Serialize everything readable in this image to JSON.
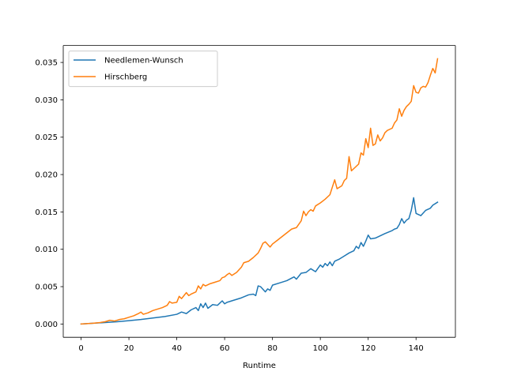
{
  "chart_data": {
    "type": "line",
    "title": "",
    "xlabel": "Runtime",
    "ylabel": "",
    "xlim": [
      -7.45,
      156.45
    ],
    "ylim": [
      -0.00178,
      0.03727
    ],
    "x_ticks": [
      0,
      20,
      40,
      60,
      80,
      100,
      120,
      140
    ],
    "x_tick_labels": [
      "0",
      "20",
      "40",
      "60",
      "80",
      "100",
      "120",
      "140"
    ],
    "y_ticks": [
      0.0,
      0.005,
      0.01,
      0.015,
      0.02,
      0.025,
      0.03,
      0.035
    ],
    "y_tick_labels": [
      "0.000",
      "0.005",
      "0.010",
      "0.015",
      "0.020",
      "0.025",
      "0.030",
      "0.035"
    ],
    "grid": false,
    "legend_position": "top-left",
    "series": [
      {
        "name": "Needlemen-Wunsch",
        "color": "#1f77b4",
        "x": [
          0,
          5,
          10,
          15,
          20,
          25,
          30,
          35,
          40,
          42,
          44,
          46,
          48,
          49,
          50,
          51,
          52,
          53,
          55,
          57,
          59,
          60,
          61,
          63,
          65,
          67,
          70,
          72,
          73,
          74,
          75,
          77,
          78,
          79,
          80,
          83,
          86,
          89,
          90,
          92,
          94,
          96,
          98,
          100,
          101,
          102,
          103,
          104,
          105,
          106,
          108,
          110,
          112,
          114,
          115,
          116,
          117,
          118,
          119,
          120,
          121,
          123,
          125,
          127,
          130,
          131,
          132,
          133,
          134,
          135,
          136,
          137,
          138,
          139,
          140,
          142,
          144,
          146,
          147,
          149
        ],
        "values": [
          0.0,
          0.0001,
          0.0002,
          0.0003,
          0.00045,
          0.0006,
          0.0008,
          0.001,
          0.0013,
          0.0016,
          0.0014,
          0.0019,
          0.0022,
          0.0018,
          0.0027,
          0.0022,
          0.0028,
          0.0021,
          0.0026,
          0.0025,
          0.0031,
          0.0027,
          0.0029,
          0.0031,
          0.0033,
          0.0035,
          0.0039,
          0.004,
          0.0038,
          0.0051,
          0.005,
          0.0043,
          0.0047,
          0.0045,
          0.0052,
          0.0055,
          0.0058,
          0.0063,
          0.006,
          0.0068,
          0.0069,
          0.0074,
          0.007,
          0.0079,
          0.0076,
          0.0081,
          0.0078,
          0.0083,
          0.0078,
          0.0084,
          0.0087,
          0.0091,
          0.0095,
          0.0098,
          0.0104,
          0.0101,
          0.0109,
          0.0104,
          0.0111,
          0.0119,
          0.0114,
          0.0115,
          0.0118,
          0.0121,
          0.0125,
          0.0127,
          0.0128,
          0.0133,
          0.0141,
          0.0135,
          0.0139,
          0.0141,
          0.0152,
          0.0169,
          0.0148,
          0.0145,
          0.0152,
          0.0155,
          0.0159,
          0.0163
        ]
      },
      {
        "name": "Hirschberg",
        "color": "#ff7f0e",
        "x": [
          0,
          5,
          8,
          10,
          12,
          14,
          16,
          18,
          20,
          22,
          24,
          25,
          26,
          28,
          30,
          32,
          34,
          36,
          37,
          38,
          40,
          41,
          42,
          43,
          44,
          45,
          46,
          48,
          49,
          50,
          51,
          52,
          54,
          56,
          58,
          59,
          60,
          61,
          62,
          63,
          65,
          67,
          68,
          70,
          72,
          74,
          75,
          76,
          77,
          79,
          80,
          82,
          84,
          86,
          88,
          90,
          92,
          93,
          94,
          95,
          96,
          97,
          98,
          100,
          102,
          104,
          106,
          107,
          108,
          109,
          110,
          111,
          112,
          113,
          114,
          116,
          117,
          118,
          119,
          120,
          121,
          122,
          123,
          124,
          125,
          126,
          127,
          128,
          130,
          131,
          132,
          133,
          134,
          135,
          136,
          137,
          138,
          139,
          140,
          141,
          142,
          143,
          144,
          145,
          146,
          147,
          148,
          149
        ],
        "values": [
          0.0,
          0.0001,
          0.0002,
          0.0003,
          0.0005,
          0.0004,
          0.0006,
          0.0007,
          0.0009,
          0.0011,
          0.0014,
          0.0016,
          0.0013,
          0.0015,
          0.0018,
          0.002,
          0.0022,
          0.0025,
          0.003,
          0.0028,
          0.0029,
          0.0037,
          0.0034,
          0.0038,
          0.0042,
          0.0038,
          0.004,
          0.0043,
          0.0051,
          0.0047,
          0.0053,
          0.0051,
          0.0054,
          0.0056,
          0.0058,
          0.0062,
          0.0063,
          0.0066,
          0.0068,
          0.0065,
          0.0069,
          0.0076,
          0.0082,
          0.0084,
          0.0089,
          0.0095,
          0.0101,
          0.0108,
          0.011,
          0.0103,
          0.0107,
          0.0112,
          0.0117,
          0.0122,
          0.0127,
          0.0129,
          0.0138,
          0.0151,
          0.0145,
          0.015,
          0.0153,
          0.0151,
          0.0158,
          0.0162,
          0.0167,
          0.0173,
          0.0193,
          0.0181,
          0.0183,
          0.0185,
          0.0192,
          0.0195,
          0.0224,
          0.0205,
          0.0208,
          0.0214,
          0.0229,
          0.0226,
          0.0248,
          0.0236,
          0.0262,
          0.0239,
          0.0241,
          0.0253,
          0.0245,
          0.0249,
          0.0256,
          0.0259,
          0.0262,
          0.0269,
          0.0273,
          0.0288,
          0.0278,
          0.0286,
          0.0291,
          0.0294,
          0.0298,
          0.0319,
          0.031,
          0.0309,
          0.0316,
          0.0318,
          0.0317,
          0.0323,
          0.0333,
          0.0342,
          0.0336,
          0.0355
        ]
      }
    ]
  }
}
